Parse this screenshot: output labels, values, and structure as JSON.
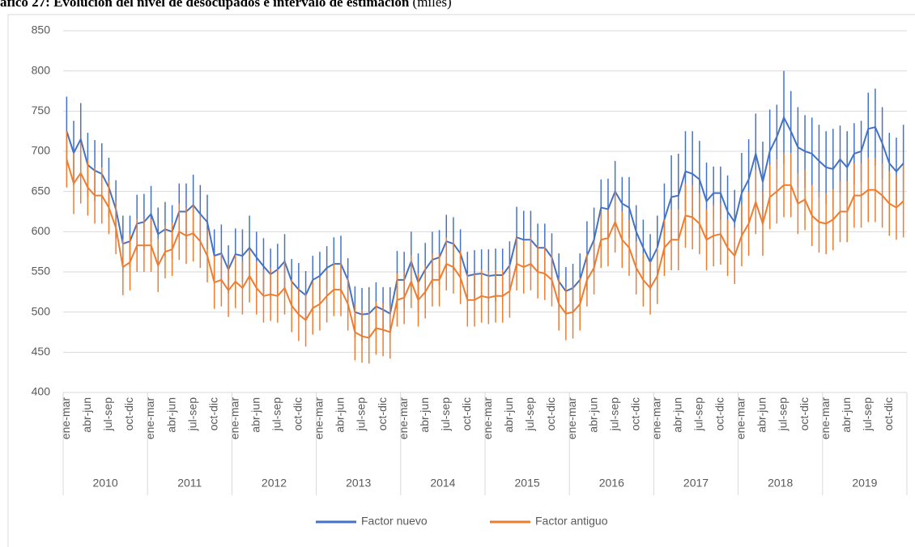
{
  "chart_data": {
    "type": "line",
    "title": "áfico 27: Evolución del nivel de desocupados e intervalo de estimación",
    "subtitle": "(miles)",
    "categories": [
      "ene-mar",
      null,
      null,
      "abr-jun",
      null,
      null,
      "jul-sep",
      null,
      null,
      "oct-dic",
      null,
      null,
      "ene-mar",
      null,
      null,
      "abr-jun",
      null,
      null,
      "jul-sep",
      null,
      null,
      "oct-dic",
      null,
      null,
      "ene-mar",
      null,
      null,
      "abr-jun",
      null,
      null,
      "jul-sep",
      null,
      null,
      "oct-dic",
      null,
      null,
      "ene-mar",
      null,
      null,
      "abr-jun",
      null,
      null,
      "jul-sep",
      null,
      null,
      "oct-dic",
      null,
      null,
      "ene-mar",
      null,
      null,
      "abr-jun",
      null,
      null,
      "jul-sep",
      null,
      null,
      "oct-dic",
      null,
      null,
      "ene-mar",
      null,
      null,
      "abr-jun",
      null,
      null,
      "jul-sep",
      null,
      null,
      "oct-dic",
      null,
      null,
      "ene-mar",
      null,
      null,
      "abr-jun",
      null,
      null,
      "jul-sep",
      null,
      null,
      "oct-dic",
      null,
      null,
      "ene-mar",
      null,
      null,
      "abr-jun",
      null,
      null,
      "jul-sep",
      null,
      null,
      "oct-dic",
      null,
      null,
      "ene-mar",
      null,
      null,
      "abr-jun",
      null,
      null,
      "jul-sep",
      null,
      null,
      "oct-dic",
      null,
      null,
      "ene-mar",
      null,
      null,
      "abr-jun",
      null,
      null,
      "jul-sep",
      null,
      null,
      "oct-dic",
      null,
      null
    ],
    "groups": [
      "2010",
      "2011",
      "2012",
      "2013",
      "2014",
      "2015",
      "2016",
      "2017",
      "2018",
      "2019"
    ],
    "series": [
      {
        "name": "Factor nuevo",
        "color": "#4472c4",
        "values": [
          725,
          698,
          715,
          683,
          676,
          672,
          655,
          628,
          585,
          588,
          610,
          612,
          622,
          597,
          603,
          600,
          625,
          625,
          633,
          622,
          612,
          570,
          573,
          553,
          572,
          570,
          580,
          568,
          557,
          547,
          553,
          563,
          538,
          528,
          521,
          540,
          545,
          555,
          560,
          560,
          540,
          500,
          497,
          498,
          507,
          503,
          498,
          540,
          540,
          563,
          537,
          553,
          565,
          568,
          588,
          585,
          573,
          545,
          547,
          548,
          545,
          546,
          546,
          558,
          593,
          590,
          590,
          580,
          580,
          568,
          538,
          526,
          530,
          540,
          570,
          590,
          630,
          628,
          650,
          635,
          630,
          600,
          580,
          562,
          580,
          615,
          643,
          645,
          675,
          672,
          665,
          638,
          648,
          648,
          625,
          612,
          648,
          665,
          697,
          662,
          700,
          718,
          742,
          725,
          705,
          700,
          697,
          688,
          680,
          678,
          690,
          680,
          697,
          700,
          728,
          730,
          710,
          685,
          675,
          685
        ],
        "errors": [
          43,
          40,
          45,
          40,
          38,
          38,
          37,
          36,
          35,
          32,
          36,
          35,
          35,
          33,
          34,
          33,
          35,
          35,
          38,
          36,
          34,
          33,
          36,
          30,
          32,
          33,
          40,
          32,
          35,
          32,
          32,
          34,
          28,
          33,
          30,
          30,
          30,
          27,
          33,
          35,
          27,
          32,
          33,
          33,
          30,
          28,
          33,
          36,
          35,
          37,
          36,
          33,
          35,
          34,
          33,
          33,
          30,
          30,
          30,
          30,
          33,
          33,
          33,
          30,
          38,
          36,
          36,
          30,
          30,
          30,
          35,
          30,
          30,
          33,
          43,
          40,
          35,
          38,
          38,
          33,
          38,
          33,
          35,
          35,
          40,
          45,
          52,
          52,
          50,
          53,
          48,
          48,
          33,
          33,
          45,
          40,
          50,
          50,
          50,
          50,
          52,
          40,
          58,
          50,
          50,
          45,
          45,
          45,
          45,
          50,
          42,
          45,
          38,
          38,
          45,
          48,
          45,
          38,
          42,
          48
        ]
      },
      {
        "name": "Factor antiguo",
        "color": "#ed7d31",
        "values": [
          690,
          660,
          673,
          655,
          645,
          645,
          630,
          605,
          556,
          562,
          583,
          583,
          583,
          558,
          575,
          578,
          600,
          595,
          598,
          588,
          570,
          537,
          540,
          527,
          538,
          530,
          545,
          530,
          520,
          522,
          520,
          530,
          508,
          497,
          490,
          505,
          510,
          520,
          528,
          528,
          510,
          475,
          470,
          468,
          480,
          478,
          475,
          515,
          518,
          538,
          515,
          525,
          540,
          540,
          560,
          556,
          543,
          515,
          515,
          520,
          518,
          520,
          520,
          526,
          560,
          556,
          560,
          550,
          548,
          540,
          510,
          498,
          500,
          510,
          540,
          555,
          590,
          592,
          612,
          590,
          580,
          555,
          540,
          530,
          545,
          580,
          590,
          590,
          620,
          618,
          610,
          590,
          595,
          597,
          580,
          570,
          595,
          610,
          637,
          610,
          643,
          650,
          658,
          658,
          635,
          640,
          620,
          612,
          610,
          615,
          625,
          625,
          645,
          645,
          652,
          652,
          645,
          635,
          630,
          638
        ],
        "errors": [
          35,
          38,
          38,
          35,
          35,
          35,
          33,
          33,
          35,
          35,
          33,
          33,
          33,
          33,
          33,
          33,
          35,
          35,
          35,
          33,
          33,
          33,
          33,
          33,
          33,
          33,
          33,
          33,
          33,
          33,
          33,
          33,
          33,
          33,
          33,
          33,
          33,
          33,
          33,
          33,
          33,
          35,
          33,
          32,
          33,
          33,
          33,
          33,
          33,
          33,
          33,
          33,
          33,
          33,
          33,
          33,
          33,
          33,
          33,
          33,
          33,
          33,
          33,
          33,
          33,
          33,
          33,
          33,
          33,
          33,
          33,
          33,
          33,
          33,
          33,
          33,
          35,
          35,
          38,
          35,
          35,
          33,
          33,
          33,
          35,
          35,
          38,
          38,
          40,
          40,
          38,
          38,
          38,
          38,
          35,
          35,
          38,
          40,
          40,
          40,
          40,
          40,
          40,
          40,
          38,
          38,
          38,
          38,
          38,
          38,
          38,
          38,
          40,
          40,
          40,
          40,
          40,
          40,
          40,
          45
        ]
      }
    ],
    "ylim": [
      400,
      850
    ],
    "yticks": [
      400,
      450,
      500,
      550,
      600,
      650,
      700,
      750,
      800,
      850
    ],
    "grid": true,
    "legend": "bottom"
  }
}
